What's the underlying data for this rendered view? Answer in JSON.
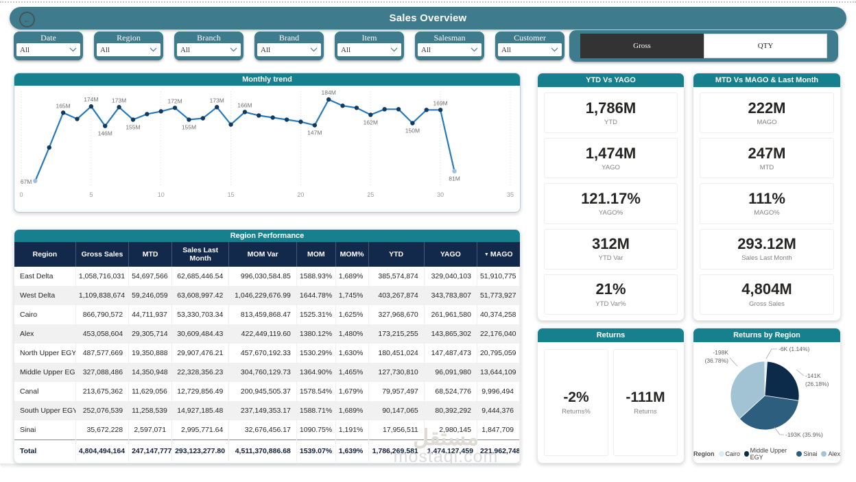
{
  "page": {
    "title": "Sales Overview"
  },
  "colors": {
    "titlebar_teal": "#3e7b8d",
    "section_teal": "#17808e",
    "table_header_navy": "#13294b",
    "selected_toggle": "#333333"
  },
  "filters": [
    {
      "label": "Date",
      "value": "All"
    },
    {
      "label": "Region",
      "value": "All"
    },
    {
      "label": "Branch",
      "value": "All"
    },
    {
      "label": "Brand",
      "value": "All"
    },
    {
      "label": "Item",
      "value": "All"
    },
    {
      "label": "Salesman",
      "value": "All"
    },
    {
      "label": "Customer",
      "value": "All"
    }
  ],
  "toggle": {
    "options": [
      {
        "label": "Gross",
        "selected": true
      },
      {
        "label": "QTY",
        "selected": false
      }
    ]
  },
  "chart_data": [
    {
      "id": "monthly_trend",
      "type": "line",
      "title": "Monthly trend",
      "xlabel": "",
      "ylabel": "",
      "xlim": [
        0,
        35
      ],
      "x_ticks": [
        0,
        5,
        10,
        15,
        20,
        25,
        30,
        35
      ],
      "grid": "vertical-dotted",
      "line_color": "#2679bd",
      "marker_color": "#12395e",
      "end_marker_color": "#9fc0da",
      "x": [
        1,
        2,
        3,
        4,
        5,
        6,
        7,
        8,
        9,
        10,
        11,
        12,
        13,
        14,
        15,
        16,
        17,
        18,
        19,
        20,
        21,
        22,
        23,
        24,
        25,
        26,
        27,
        28,
        29,
        30,
        31
      ],
      "values": [
        67,
        115,
        165,
        156,
        174,
        146,
        173,
        155,
        163,
        167,
        172,
        155,
        157,
        173,
        148,
        166,
        161,
        158,
        155,
        152,
        147,
        184,
        175,
        172,
        162,
        170,
        170,
        150,
        169,
        169,
        81
      ],
      "labels": [
        "67M",
        null,
        "165M",
        null,
        "174M",
        "146M",
        "173M",
        "155M",
        null,
        null,
        "172M",
        "155M",
        null,
        "173M",
        null,
        "166M",
        null,
        null,
        null,
        null,
        "147M",
        "184M",
        null,
        null,
        "162M",
        null,
        null,
        "150M",
        null,
        "169M",
        "81M"
      ],
      "label_side": [
        "left",
        null,
        "above",
        null,
        "above",
        "below",
        "above",
        "below",
        null,
        null,
        "above",
        "below",
        null,
        "above",
        null,
        "above",
        null,
        null,
        null,
        null,
        "below",
        "above",
        null,
        null,
        "below",
        null,
        null,
        "below",
        null,
        "above",
        "below"
      ]
    },
    {
      "id": "returns_by_region",
      "type": "pie",
      "title": "Returns by Region",
      "legend_title": "Region",
      "legend_position": "bottom",
      "slices": [
        {
          "name": "Cairo",
          "value_label": "-6K",
          "pct": 1.14,
          "pct_label": "1.14%",
          "color": "#d9edf2"
        },
        {
          "name": "Middle Upper EGY",
          "value_label": "-141K",
          "pct": 26.18,
          "pct_label": "26.18%",
          "color": "#0c2b4a"
        },
        {
          "name": "Sinai",
          "value_label": "-193K",
          "pct": 35.9,
          "pct_label": "35.9%",
          "color": "#2e5e7e"
        },
        {
          "name": "Alex",
          "value_label": "-198K",
          "pct": 36.78,
          "pct_label": "36.78%",
          "color": "#a2c3d3"
        }
      ]
    }
  ],
  "kpi_panels": [
    {
      "id": "ytd",
      "title": "YTD Vs YAGO",
      "layout": "column",
      "cards": [
        {
          "value": "1,786M",
          "label": "YTD"
        },
        {
          "value": "1,474M",
          "label": "YAGO"
        },
        {
          "value": "121.17%",
          "label": "YAGO%"
        },
        {
          "value": "312M",
          "label": "YTD Var"
        },
        {
          "value": "21%",
          "label": "YTD Var%"
        }
      ]
    },
    {
      "id": "mtd",
      "title": "MTD Vs MAGO & Last Month",
      "layout": "column",
      "cards": [
        {
          "value": "222M",
          "label": "MAGO"
        },
        {
          "value": "247M",
          "label": "MTD"
        },
        {
          "value": "111%",
          "label": "MAGO%"
        },
        {
          "value": "293.12M",
          "label": "Sales Last Month"
        },
        {
          "value": "4,804M",
          "label": "Gross Sales"
        }
      ]
    },
    {
      "id": "returns",
      "title": "Returns",
      "layout": "row",
      "cards": [
        {
          "value": "-2%",
          "label": "Returns%"
        },
        {
          "value": "-111M",
          "label": "Returns"
        }
      ]
    }
  ],
  "table": {
    "title": "Region Performance",
    "columns": [
      "Region",
      "Gross Sales",
      "MTD",
      "Sales Last Month",
      "MOM Var",
      "MOM",
      "MOM%",
      "YTD",
      "YAGO",
      "MAGO"
    ],
    "sorted_column": "MAGO",
    "rows": [
      [
        "East Delta",
        "1,058,716,031",
        "54,697,566",
        "62,685,446.54",
        "996,030,584.85",
        "1588.93%",
        "1,689%",
        "385,574,874",
        "329,040,103",
        "51,910,775"
      ],
      [
        "West Delta",
        "1,109,838,674",
        "59,246,059",
        "63,608,997.42",
        "1,046,229,676.99",
        "1644.78%",
        "1,745%",
        "403,267,874",
        "343,783,807",
        "51,773,927"
      ],
      [
        "Cairo",
        "866,790,572",
        "44,711,937",
        "53,330,703.34",
        "813,459,868.47",
        "1525.31%",
        "1,625%",
        "327,968,670",
        "261,961,580",
        "40,374,258"
      ],
      [
        "Alex",
        "453,058,604",
        "29,305,714",
        "30,609,484.43",
        "422,449,119.60",
        "1380.12%",
        "1,480%",
        "173,215,255",
        "143,865,302",
        "22,176,040"
      ],
      [
        "North Upper EGY",
        "487,577,669",
        "19,350,888",
        "29,907,476.21",
        "457,670,192.33",
        "1530.29%",
        "1,630%",
        "180,451,024",
        "147,487,473",
        "20,795,059"
      ],
      [
        "Middle Upper EGY",
        "327,088,486",
        "14,350,948",
        "22,328,356.23",
        "304,760,129.73",
        "1364.90%",
        "1,465%",
        "127,730,810",
        "96,091,980",
        "13,644,109"
      ],
      [
        "Canal",
        "213,675,362",
        "11,629,056",
        "12,729,856.49",
        "200,945,505.37",
        "1578.54%",
        "1,679%",
        "79,957,497",
        "68,524,776",
        "9,996,494"
      ],
      [
        "South Upper EGY",
        "252,076,539",
        "11,258,539",
        "14,927,185.48",
        "237,149,353.17",
        "1588.71%",
        "1,689%",
        "90,147,065",
        "80,392,292",
        "9,444,376"
      ],
      [
        "Sinai",
        "35,672,228",
        "2,597,071",
        "2,995,771.64",
        "32,676,456.17",
        "1090.75%",
        "1,191%",
        "17,956,511",
        "2,980,145",
        "1,847,709"
      ]
    ],
    "total_row": [
      "Total",
      "4,804,494,164",
      "247,147,777",
      "293,123,277.80",
      "4,511,370,886.68",
      "1539.07%",
      "1,639%",
      "1,786,269,581",
      "1,474,127,459",
      "221,962,748"
    ]
  },
  "watermark": {
    "line1": "مستقل",
    "line2": "mostaql.com"
  }
}
